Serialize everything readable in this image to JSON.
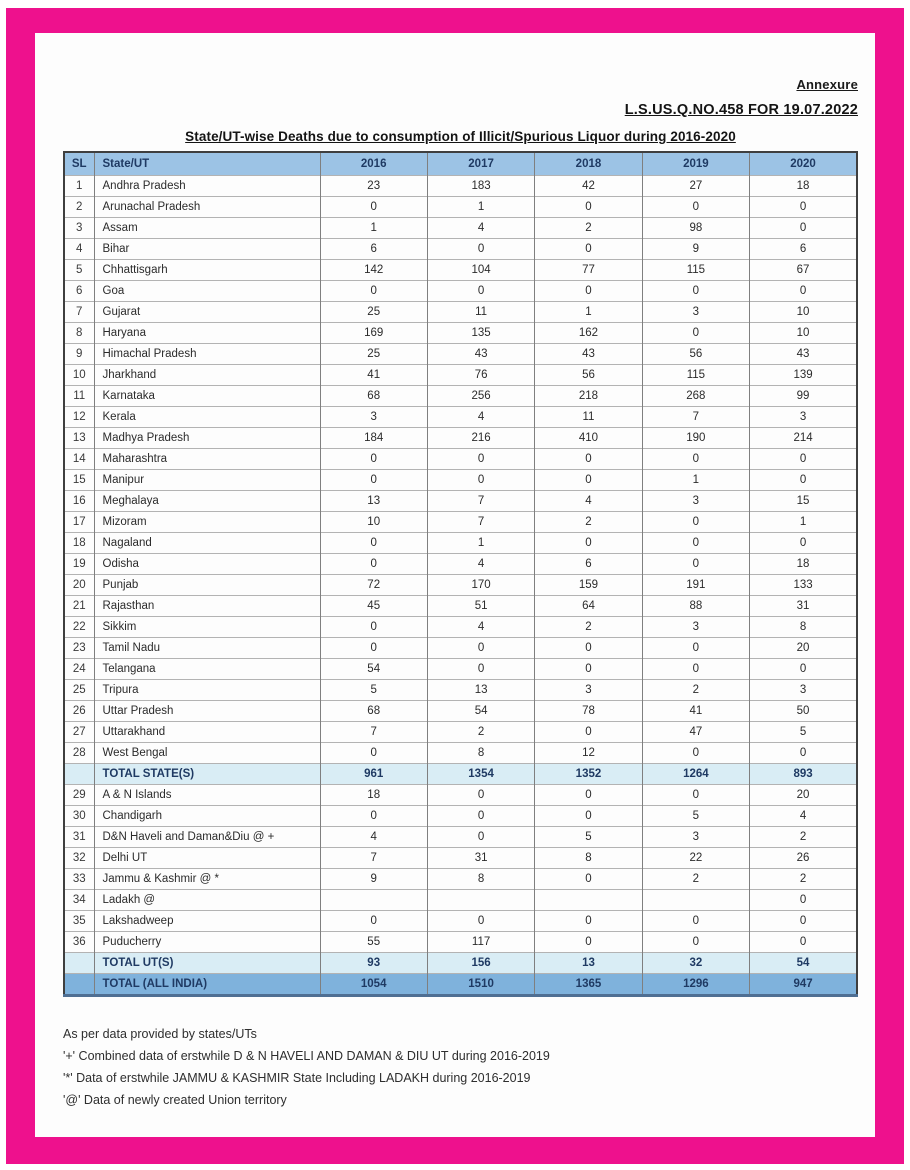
{
  "page": {
    "annexure_label": "Annexure",
    "reference_line": "L.S.US.Q.NO.458 FOR 19.07.2022",
    "title": "State/UT-wise Deaths due to consumption of Illicit/Spurious Liquor during 2016-2020"
  },
  "table": {
    "columns": [
      "SL",
      "State/UT",
      "2016",
      "2017",
      "2018",
      "2019",
      "2020"
    ],
    "rows": [
      {
        "type": "data",
        "sl": "1",
        "name": "Andhra Pradesh",
        "values": [
          "23",
          "183",
          "42",
          "27",
          "18"
        ]
      },
      {
        "type": "data",
        "sl": "2",
        "name": "Arunachal Pradesh",
        "values": [
          "0",
          "1",
          "0",
          "0",
          "0"
        ]
      },
      {
        "type": "data",
        "sl": "3",
        "name": "Assam",
        "values": [
          "1",
          "4",
          "2",
          "98",
          "0"
        ]
      },
      {
        "type": "data",
        "sl": "4",
        "name": "Bihar",
        "values": [
          "6",
          "0",
          "0",
          "9",
          "6"
        ]
      },
      {
        "type": "data",
        "sl": "5",
        "name": "Chhattisgarh",
        "values": [
          "142",
          "104",
          "77",
          "115",
          "67"
        ]
      },
      {
        "type": "data",
        "sl": "6",
        "name": "Goa",
        "values": [
          "0",
          "0",
          "0",
          "0",
          "0"
        ]
      },
      {
        "type": "data",
        "sl": "7",
        "name": "Gujarat",
        "values": [
          "25",
          "11",
          "1",
          "3",
          "10"
        ]
      },
      {
        "type": "data",
        "sl": "8",
        "name": "Haryana",
        "values": [
          "169",
          "135",
          "162",
          "0",
          "10"
        ]
      },
      {
        "type": "data",
        "sl": "9",
        "name": "Himachal Pradesh",
        "values": [
          "25",
          "43",
          "43",
          "56",
          "43"
        ]
      },
      {
        "type": "data",
        "sl": "10",
        "name": "Jharkhand",
        "values": [
          "41",
          "76",
          "56",
          "115",
          "139"
        ]
      },
      {
        "type": "data",
        "sl": "11",
        "name": "Karnataka",
        "values": [
          "68",
          "256",
          "218",
          "268",
          "99"
        ]
      },
      {
        "type": "data",
        "sl": "12",
        "name": "Kerala",
        "values": [
          "3",
          "4",
          "11",
          "7",
          "3"
        ]
      },
      {
        "type": "data",
        "sl": "13",
        "name": "Madhya Pradesh",
        "values": [
          "184",
          "216",
          "410",
          "190",
          "214"
        ]
      },
      {
        "type": "data",
        "sl": "14",
        "name": "Maharashtra",
        "values": [
          "0",
          "0",
          "0",
          "0",
          "0"
        ]
      },
      {
        "type": "data",
        "sl": "15",
        "name": "Manipur",
        "values": [
          "0",
          "0",
          "0",
          "1",
          "0"
        ]
      },
      {
        "type": "data",
        "sl": "16",
        "name": "Meghalaya",
        "values": [
          "13",
          "7",
          "4",
          "3",
          "15"
        ]
      },
      {
        "type": "data",
        "sl": "17",
        "name": "Mizoram",
        "values": [
          "10",
          "7",
          "2",
          "0",
          "1"
        ]
      },
      {
        "type": "data",
        "sl": "18",
        "name": "Nagaland",
        "values": [
          "0",
          "1",
          "0",
          "0",
          "0"
        ]
      },
      {
        "type": "data",
        "sl": "19",
        "name": "Odisha",
        "values": [
          "0",
          "4",
          "6",
          "0",
          "18"
        ]
      },
      {
        "type": "data",
        "sl": "20",
        "name": "Punjab",
        "values": [
          "72",
          "170",
          "159",
          "191",
          "133"
        ]
      },
      {
        "type": "data",
        "sl": "21",
        "name": "Rajasthan",
        "values": [
          "45",
          "51",
          "64",
          "88",
          "31"
        ]
      },
      {
        "type": "data",
        "sl": "22",
        "name": "Sikkim",
        "values": [
          "0",
          "4",
          "2",
          "3",
          "8"
        ]
      },
      {
        "type": "data",
        "sl": "23",
        "name": "Tamil Nadu",
        "values": [
          "0",
          "0",
          "0",
          "0",
          "20"
        ]
      },
      {
        "type": "data",
        "sl": "24",
        "name": "Telangana",
        "values": [
          "54",
          "0",
          "0",
          "0",
          "0"
        ]
      },
      {
        "type": "data",
        "sl": "25",
        "name": "Tripura",
        "values": [
          "5",
          "13",
          "3",
          "2",
          "3"
        ]
      },
      {
        "type": "data",
        "sl": "26",
        "name": "Uttar Pradesh",
        "values": [
          "68",
          "54",
          "78",
          "41",
          "50"
        ]
      },
      {
        "type": "data",
        "sl": "27",
        "name": "Uttarakhand",
        "values": [
          "7",
          "2",
          "0",
          "47",
          "5"
        ]
      },
      {
        "type": "data",
        "sl": "28",
        "name": "West Bengal",
        "values": [
          "0",
          "8",
          "12",
          "0",
          "0"
        ]
      },
      {
        "type": "subtotal",
        "sl": "",
        "name": "TOTAL STATE(S)",
        "values": [
          "961",
          "1354",
          "1352",
          "1264",
          "893"
        ]
      },
      {
        "type": "data",
        "sl": "29",
        "name": "A & N Islands",
        "values": [
          "18",
          "0",
          "0",
          "0",
          "20"
        ]
      },
      {
        "type": "data",
        "sl": "30",
        "name": "Chandigarh",
        "values": [
          "0",
          "0",
          "0",
          "5",
          "4"
        ]
      },
      {
        "type": "data",
        "sl": "31",
        "name": "D&N Haveli and Daman&Diu @ +",
        "values": [
          "4",
          "0",
          "5",
          "3",
          "2"
        ]
      },
      {
        "type": "data",
        "sl": "32",
        "name": "Delhi UT",
        "values": [
          "7",
          "31",
          "8",
          "22",
          "26"
        ]
      },
      {
        "type": "data",
        "sl": "33",
        "name": "Jammu & Kashmir @ *",
        "values": [
          "9",
          "8",
          "0",
          "2",
          "2"
        ]
      },
      {
        "type": "data",
        "sl": "34",
        "name": "Ladakh @",
        "values": [
          "",
          "",
          "",
          "",
          "0"
        ]
      },
      {
        "type": "data",
        "sl": "35",
        "name": "Lakshadweep",
        "values": [
          "0",
          "0",
          "0",
          "0",
          "0"
        ]
      },
      {
        "type": "data",
        "sl": "36",
        "name": "Puducherry",
        "values": [
          "55",
          "117",
          "0",
          "0",
          "0"
        ]
      },
      {
        "type": "subtotal",
        "sl": "",
        "name": "TOTAL UT(S)",
        "values": [
          "93",
          "156",
          "13",
          "32",
          "54"
        ]
      },
      {
        "type": "grand",
        "sl": "",
        "name": "TOTAL (ALL INDIA)",
        "values": [
          "1054",
          "1510",
          "1365",
          "1296",
          "947"
        ]
      }
    ]
  },
  "footnotes": [
    "As per data provided by states/UTs",
    "'+' Combined data of erstwhile D & N HAVELI AND DAMAN & DIU UT during 2016-2019",
    "'*' Data of erstwhile JAMMU & KASHMIR State Including LADAKH during 2016-2019",
    "'@' Data of newly created Union territory"
  ],
  "colors": {
    "frame_pink": "#ee118d",
    "header_blue": "#9cc3e5",
    "subtotal_blue": "#d9edf5",
    "grand_total_blue": "#7fb2dc",
    "header_text_navy": "#1f3a63"
  }
}
